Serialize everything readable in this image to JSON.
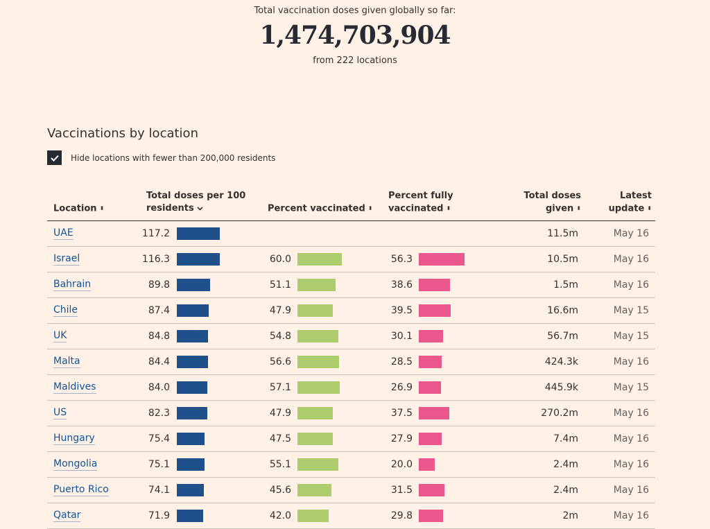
{
  "summary": {
    "label": "Total vaccination doses given globally so far:",
    "total": "1,474,703,904",
    "locations": "from 222 locations"
  },
  "section": {
    "title": "Vaccinations by location",
    "filter_label": "Hide locations with fewer than 200,000 residents",
    "filter_checked": true
  },
  "table": {
    "headers": {
      "location": "Location",
      "doses_per_100_line1": "Total doses per 100",
      "doses_per_100_line2": "residents",
      "pct_vaccinated": "Percent vaccinated",
      "pct_fully_line1": "Percent fully",
      "pct_fully_line2": "vaccinated",
      "total_doses_line1": "Total doses",
      "total_doses_line2": "given",
      "latest_line1": "Latest",
      "latest_line2": "update"
    },
    "colors": {
      "doses": "#1f5089",
      "vaccinated": "#adcc6c",
      "fully": "#e9578d"
    },
    "rows": [
      {
        "location": "UAE",
        "doses_per_100": "117.2",
        "pct_vaccinated": "",
        "pct_fully": "",
        "total_doses": "11.5m",
        "latest": "May 16"
      },
      {
        "location": "Israel",
        "doses_per_100": "116.3",
        "pct_vaccinated": "60.0",
        "pct_fully": "56.3",
        "total_doses": "10.5m",
        "latest": "May 16"
      },
      {
        "location": "Bahrain",
        "doses_per_100": "89.8",
        "pct_vaccinated": "51.1",
        "pct_fully": "38.6",
        "total_doses": "1.5m",
        "latest": "May 16"
      },
      {
        "location": "Chile",
        "doses_per_100": "87.4",
        "pct_vaccinated": "47.9",
        "pct_fully": "39.5",
        "total_doses": "16.6m",
        "latest": "May 15"
      },
      {
        "location": "UK",
        "doses_per_100": "84.8",
        "pct_vaccinated": "54.8",
        "pct_fully": "30.1",
        "total_doses": "56.7m",
        "latest": "May 15"
      },
      {
        "location": "Malta",
        "doses_per_100": "84.4",
        "pct_vaccinated": "56.6",
        "pct_fully": "28.5",
        "total_doses": "424.3k",
        "latest": "May 16"
      },
      {
        "location": "Maldives",
        "doses_per_100": "84.0",
        "pct_vaccinated": "57.1",
        "pct_fully": "26.9",
        "total_doses": "445.9k",
        "latest": "May 15"
      },
      {
        "location": "US",
        "doses_per_100": "82.3",
        "pct_vaccinated": "47.9",
        "pct_fully": "37.5",
        "total_doses": "270.2m",
        "latest": "May 16"
      },
      {
        "location": "Hungary",
        "doses_per_100": "75.4",
        "pct_vaccinated": "47.5",
        "pct_fully": "27.9",
        "total_doses": "7.4m",
        "latest": "May 16"
      },
      {
        "location": "Mongolia",
        "doses_per_100": "75.1",
        "pct_vaccinated": "55.1",
        "pct_fully": "20.0",
        "total_doses": "2.4m",
        "latest": "May 16"
      },
      {
        "location": "Puerto Rico",
        "doses_per_100": "74.1",
        "pct_vaccinated": "45.6",
        "pct_fully": "31.5",
        "total_doses": "2.4m",
        "latest": "May 16"
      },
      {
        "location": "Qatar",
        "doses_per_100": "71.9",
        "pct_vaccinated": "42.0",
        "pct_fully": "29.8",
        "total_doses": "2m",
        "latest": "May 16"
      }
    ]
  }
}
